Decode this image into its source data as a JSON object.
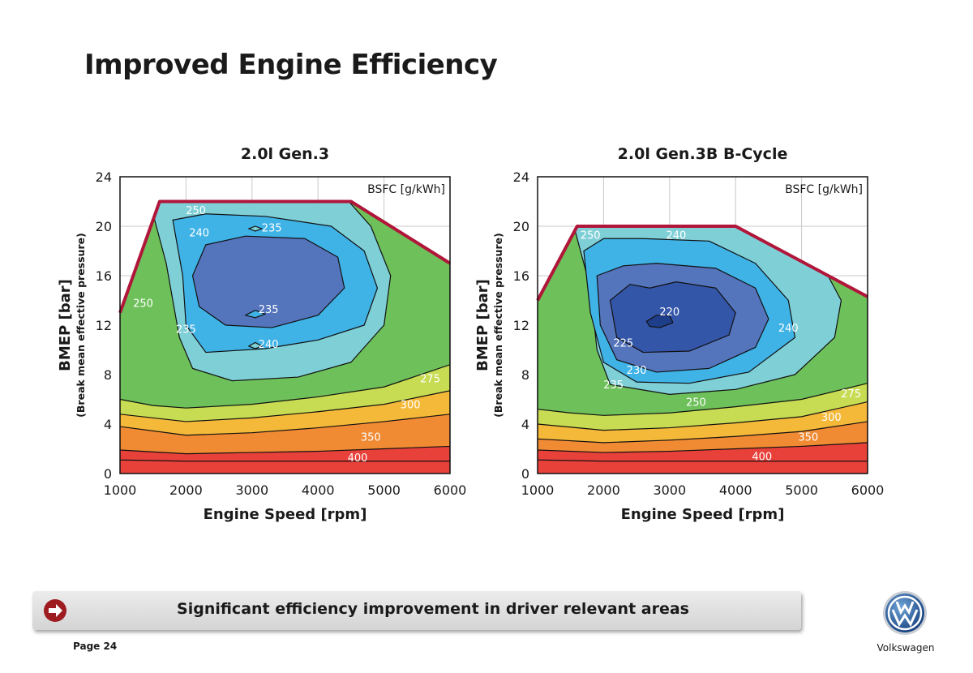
{
  "slide": {
    "title": "Improved Engine Efficiency",
    "banner_text": "Significant efficiency improvement in driver relevant areas",
    "page_label": "Page 24",
    "brand": "Volkswagen",
    "icons": [
      "arrow-right-icon",
      "vw-logo-icon"
    ]
  },
  "chart_data": [
    {
      "type": "contour",
      "title": "2.0l Gen.3",
      "xlabel": "Engine Speed [rpm]",
      "ylabel": "BMEP [bar]",
      "ylabel_sub": "(Break mean effective pressure)",
      "legend_title": "BSFC [g/kWh]",
      "xlim": [
        1000,
        6000
      ],
      "ylim": [
        0,
        24
      ],
      "xticks": [
        1000,
        2000,
        3000,
        4000,
        5000,
        6000
      ],
      "yticks": [
        0,
        4,
        8,
        12,
        16,
        20,
        24
      ],
      "grid": true,
      "max_torque_curve": [
        [
          1000,
          13
        ],
        [
          1600,
          22
        ],
        [
          4500,
          22
        ],
        [
          6000,
          17
        ]
      ],
      "contour_labels": [
        {
          "value": "400",
          "x": 4600,
          "y": 1.3
        },
        {
          "value": "350",
          "x": 4800,
          "y": 3.0
        },
        {
          "value": "300",
          "x": 5400,
          "y": 5.6
        },
        {
          "value": "275",
          "x": 5700,
          "y": 7.7
        },
        {
          "value": "250",
          "x": 1350,
          "y": 13.8
        },
        {
          "value": "250",
          "x": 2150,
          "y": 21.3
        },
        {
          "value": "240",
          "x": 2200,
          "y": 19.5
        },
        {
          "value": "235",
          "x": 3300,
          "y": 19.9
        },
        {
          "value": "235",
          "x": 3250,
          "y": 13.3
        },
        {
          "value": "235",
          "x": 2000,
          "y": 11.7
        },
        {
          "value": "240",
          "x": 3250,
          "y": 10.5
        }
      ],
      "colors": [
        "#e8413a",
        "#f08a33",
        "#f5b93a",
        "#c7dc52",
        "#6ec05a",
        "#7fcfd6",
        "#3fb2e6",
        "#5474bc"
      ]
    },
    {
      "type": "contour",
      "title": "2.0l Gen.3B B-Cycle",
      "xlabel": "Engine Speed [rpm]",
      "ylabel": "BMEP [bar]",
      "ylabel_sub": "(Break mean effective pressure)",
      "legend_title": "BSFC [g/kWh]",
      "xlim": [
        1000,
        6000
      ],
      "ylim": [
        0,
        24
      ],
      "xticks": [
        1000,
        2000,
        3000,
        4000,
        5000,
        6000
      ],
      "yticks": [
        0,
        4,
        8,
        12,
        16,
        20,
        24
      ],
      "grid": true,
      "max_torque_curve": [
        [
          1000,
          14
        ],
        [
          1600,
          20
        ],
        [
          4000,
          20
        ],
        [
          6000,
          14.3
        ]
      ],
      "contour_labels": [
        {
          "value": "400",
          "x": 4400,
          "y": 1.4
        },
        {
          "value": "350",
          "x": 5100,
          "y": 3.0
        },
        {
          "value": "300",
          "x": 5450,
          "y": 4.6
        },
        {
          "value": "275",
          "x": 5750,
          "y": 6.5
        },
        {
          "value": "250",
          "x": 1800,
          "y": 19.3
        },
        {
          "value": "240",
          "x": 3100,
          "y": 19.3
        },
        {
          "value": "240",
          "x": 4800,
          "y": 11.8
        },
        {
          "value": "250",
          "x": 3400,
          "y": 5.8
        },
        {
          "value": "220",
          "x": 3000,
          "y": 13.1
        },
        {
          "value": "225",
          "x": 2300,
          "y": 10.6
        },
        {
          "value": "230",
          "x": 2500,
          "y": 8.4
        },
        {
          "value": "235",
          "x": 2150,
          "y": 7.2
        }
      ],
      "colors": [
        "#e8413a",
        "#f08a33",
        "#f5b93a",
        "#c7dc52",
        "#6ec05a",
        "#7fcfd6",
        "#3fb2e6",
        "#5474bc",
        "#3456a8",
        "#1e3e8a"
      ]
    }
  ]
}
